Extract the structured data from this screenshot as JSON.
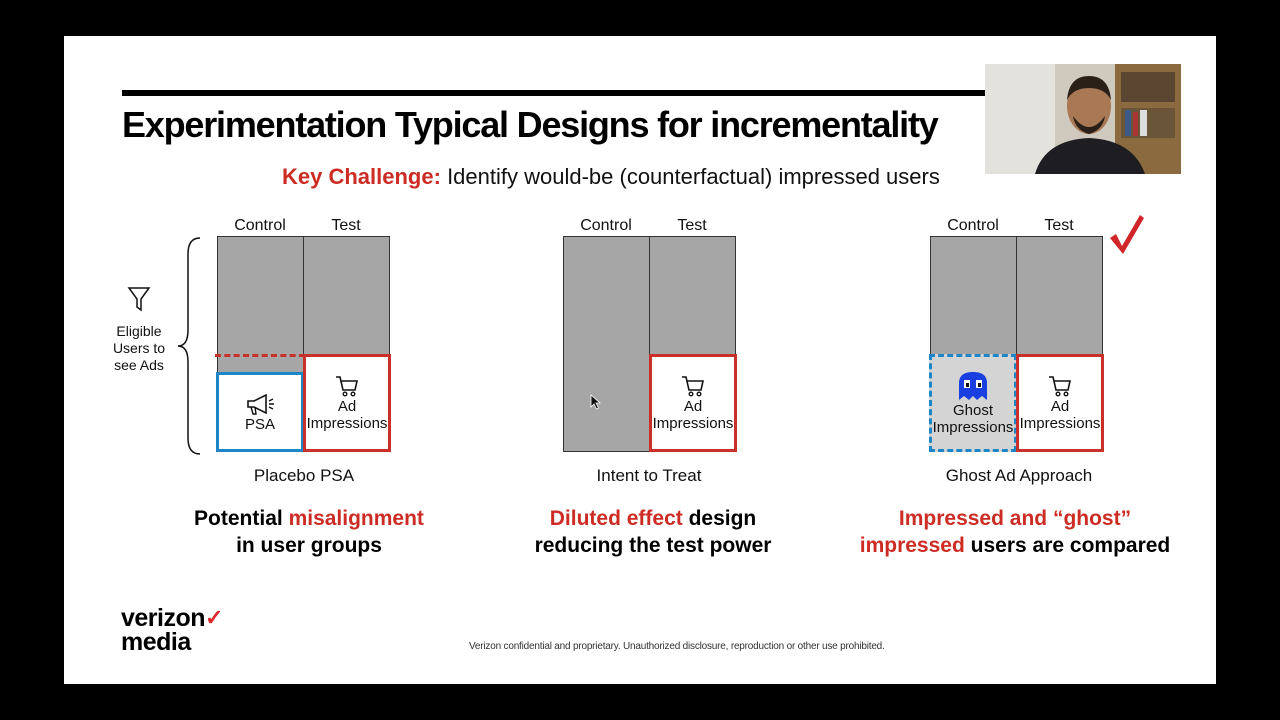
{
  "slide": {
    "title": "Experimentation Typical Designs for incrementality",
    "key_challenge_label": "Key Challenge:",
    "key_challenge_text": "Identify would-be (counterfactual) impressed users",
    "eligible_label": "Eligible Users to see Ads",
    "designs": [
      {
        "control_label": "Control",
        "test_label": "Test",
        "control_box_label": "PSA",
        "test_box_label": "Ad Impressions",
        "caption": "Placebo PSA",
        "summary_plain_1": "Potential ",
        "summary_red_1": "misalignment",
        "summary_plain_2": "in user groups"
      },
      {
        "control_label": "Control",
        "test_label": "Test",
        "test_box_label": "Ad Impressions",
        "caption": "Intent to Treat",
        "summary_red_1": "Diluted effect",
        "summary_plain_1": " design",
        "summary_plain_2": "reducing the test power"
      },
      {
        "control_label": "Control",
        "test_label": "Test",
        "control_box_label": "Ghost Impressions",
        "test_box_label": "Ad Impressions",
        "caption": "Ghost Ad Approach",
        "summary_red_1": "Impressed and  “ghost”",
        "summary_red_2": "impressed",
        "summary_plain_2": "  users are compared"
      }
    ],
    "footer": "Verizon confidential and proprietary. Unauthorized disclosure, reproduction or other use prohibited.",
    "logo_line1": "verizon",
    "logo_line2": "media",
    "logo_tick": "✓"
  },
  "icons": [
    "filter-icon",
    "megaphone-icon",
    "cart-icon",
    "ghost-icon",
    "checkmark-icon",
    "mouse-cursor-icon"
  ],
  "colors": {
    "accent_red": "#cd2c25",
    "accent_blue": "#1c86c6",
    "column_gray": "#a6a6a6"
  }
}
